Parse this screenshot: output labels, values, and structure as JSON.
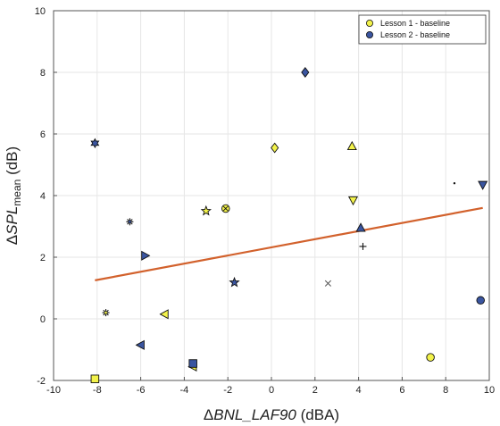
{
  "chart_data": {
    "type": "scatter",
    "xlabel": {
      "delta": "Δ",
      "main": "BNL_LAF90",
      "unit": " (dBA)"
    },
    "ylabel": {
      "delta": "Δ",
      "main": "SPL",
      "sub": "mean",
      "unit": " (dB)"
    },
    "xlim": [
      -10,
      10
    ],
    "ylim": [
      -2,
      10
    ],
    "xticks": [
      -10,
      -8,
      -6,
      -4,
      -2,
      0,
      2,
      4,
      6,
      8,
      10
    ],
    "yticks": [
      -2,
      0,
      2,
      4,
      6,
      8,
      10
    ],
    "grid": true,
    "legend_position": "top-right",
    "series": [
      {
        "name": "Lesson 1 - baseline",
        "color": "#f2f24a",
        "points": [
          {
            "x": -8.1,
            "y": -1.95,
            "marker": "square"
          },
          {
            "x": -7.6,
            "y": 0.2,
            "marker": "asterisk"
          },
          {
            "x": -4.9,
            "y": 0.15,
            "marker": "triangle-left"
          },
          {
            "x": -3.6,
            "y": -1.55,
            "marker": "triangle-left"
          },
          {
            "x": -3.0,
            "y": 3.5,
            "marker": "star5"
          },
          {
            "x": -2.1,
            "y": 3.58,
            "marker": "circle-x"
          },
          {
            "x": 0.15,
            "y": 5.55,
            "marker": "diamond"
          },
          {
            "x": 3.7,
            "y": 5.6,
            "marker": "triangle-up"
          },
          {
            "x": 3.75,
            "y": 3.85,
            "marker": "triangle-down"
          },
          {
            "x": 4.2,
            "y": 2.35,
            "marker": "plus"
          },
          {
            "x": 7.3,
            "y": -1.25,
            "marker": "circle"
          }
        ]
      },
      {
        "name": "Lesson 2 - baseline",
        "color": "#3a55a0",
        "points": [
          {
            "x": -8.1,
            "y": 5.7,
            "marker": "hexagram"
          },
          {
            "x": -6.5,
            "y": 3.15,
            "marker": "asterisk"
          },
          {
            "x": -6.0,
            "y": -0.85,
            "marker": "triangle-left"
          },
          {
            "x": -5.8,
            "y": 2.05,
            "marker": "triangle-right"
          },
          {
            "x": -3.6,
            "y": -1.45,
            "marker": "square"
          },
          {
            "x": -1.7,
            "y": 1.18,
            "marker": "star5"
          },
          {
            "x": 1.55,
            "y": 8.0,
            "marker": "diamond"
          },
          {
            "x": 2.6,
            "y": 1.15,
            "marker": "x"
          },
          {
            "x": 4.1,
            "y": 2.95,
            "marker": "triangle-up"
          },
          {
            "x": 8.4,
            "y": 4.4,
            "marker": "point"
          },
          {
            "x": 9.7,
            "y": 4.35,
            "marker": "triangle-down"
          },
          {
            "x": 9.6,
            "y": 0.6,
            "marker": "circle"
          }
        ]
      }
    ],
    "trendline": {
      "x": [
        -8.1,
        9.7
      ],
      "y": [
        1.25,
        3.6
      ],
      "color": "#d2612c"
    }
  }
}
